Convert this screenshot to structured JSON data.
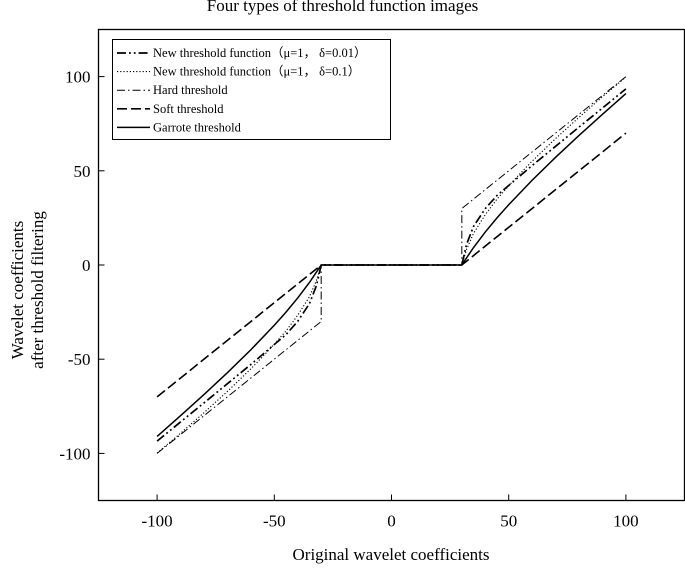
{
  "chart_data": {
    "type": "line",
    "title": "Four types of threshold function images",
    "xlabel": "Original wavelet coefficients",
    "ylabel": [
      "Wavelet coefficients",
      "after threshold filtering"
    ],
    "xlim": [
      -125,
      125
    ],
    "ylim": [
      -125,
      125
    ],
    "xticks": [
      -100,
      -50,
      0,
      50,
      100
    ],
    "yticks": [
      -100,
      -50,
      0,
      50,
      100
    ],
    "grid": false,
    "legend_position": "top-left",
    "series": [
      {
        "name": "New threshold function（μ=1， δ=0.01）",
        "style": "dash-dot-dot",
        "x": [
          -100,
          -90,
          -80,
          -70,
          -60,
          -50,
          -45,
          -40,
          -35,
          -32,
          -30,
          30,
          32,
          35,
          40,
          45,
          50,
          60,
          70,
          80,
          90,
          100
        ],
        "y": [
          -93.5,
          -83.3,
          -73.2,
          -63,
          -52.8,
          -42.2,
          -36.9,
          -29.9,
          -20.5,
          -10.9,
          0,
          0,
          10.9,
          20.5,
          29.9,
          36.9,
          42.2,
          52.8,
          63,
          73.2,
          83.3,
          93.5
        ]
      },
      {
        "name": "New threshold function（μ=1， δ=0.1）",
        "style": "dotted",
        "x": [
          -100,
          -90,
          -80,
          -70,
          -60,
          -55,
          -50,
          -45,
          -40,
          -35,
          -32,
          -30,
          30,
          32,
          35,
          40,
          45,
          50,
          55,
          60,
          70,
          80,
          90,
          100
        ],
        "y": [
          -99.8,
          -89.3,
          -78.4,
          -67.1,
          -55.1,
          -48.7,
          -42,
          -35,
          -26.7,
          -16.8,
          -8.2,
          0,
          0,
          8.2,
          16.8,
          26.7,
          35,
          42,
          48.7,
          55.1,
          67.1,
          78.4,
          89.3,
          99.8
        ]
      },
      {
        "name": "Hard threshold",
        "style": "dash-dot",
        "x": [
          -100,
          -30,
          -30,
          30,
          30,
          100
        ],
        "y": [
          -100,
          -30,
          0,
          0,
          30,
          100
        ]
      },
      {
        "name": "Soft threshold",
        "style": "dashed",
        "x": [
          -100,
          -30,
          30,
          100
        ],
        "y": [
          -70,
          0,
          0,
          70
        ]
      },
      {
        "name": "Garrote threshold",
        "style": "solid",
        "x": [
          -100,
          -90,
          -80,
          -70,
          -60,
          -50,
          -45,
          -40,
          -35,
          -30,
          30,
          35,
          40,
          45,
          50,
          60,
          70,
          80,
          90,
          100
        ],
        "y": [
          -91,
          -80,
          -68.75,
          -57.14,
          -45,
          -32,
          -25,
          -17.5,
          -9.29,
          0,
          0,
          9.29,
          17.5,
          25,
          32,
          45,
          57.14,
          68.75,
          80,
          91
        ]
      }
    ]
  }
}
